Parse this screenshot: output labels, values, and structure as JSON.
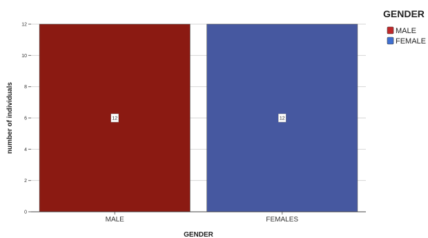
{
  "chart_data": {
    "type": "bar",
    "categories": [
      "MALE",
      "FEMALES"
    ],
    "values": [
      12,
      12
    ],
    "data_labels": [
      "12",
      "12"
    ],
    "colors": [
      "#8b1a12",
      "#4658a0"
    ],
    "xlabel": "GENDER",
    "ylabel": "number of individuals",
    "ylim": [
      0,
      12
    ],
    "yticks": [
      0,
      2,
      4,
      6,
      8,
      10,
      12
    ],
    "grid": true,
    "legend": {
      "title": "GENDER",
      "placement": "top-right",
      "entries": [
        {
          "label": "MALE",
          "color": "#c0282a"
        },
        {
          "label": "FEMALE",
          "color": "#3f6fd1"
        }
      ]
    }
  }
}
